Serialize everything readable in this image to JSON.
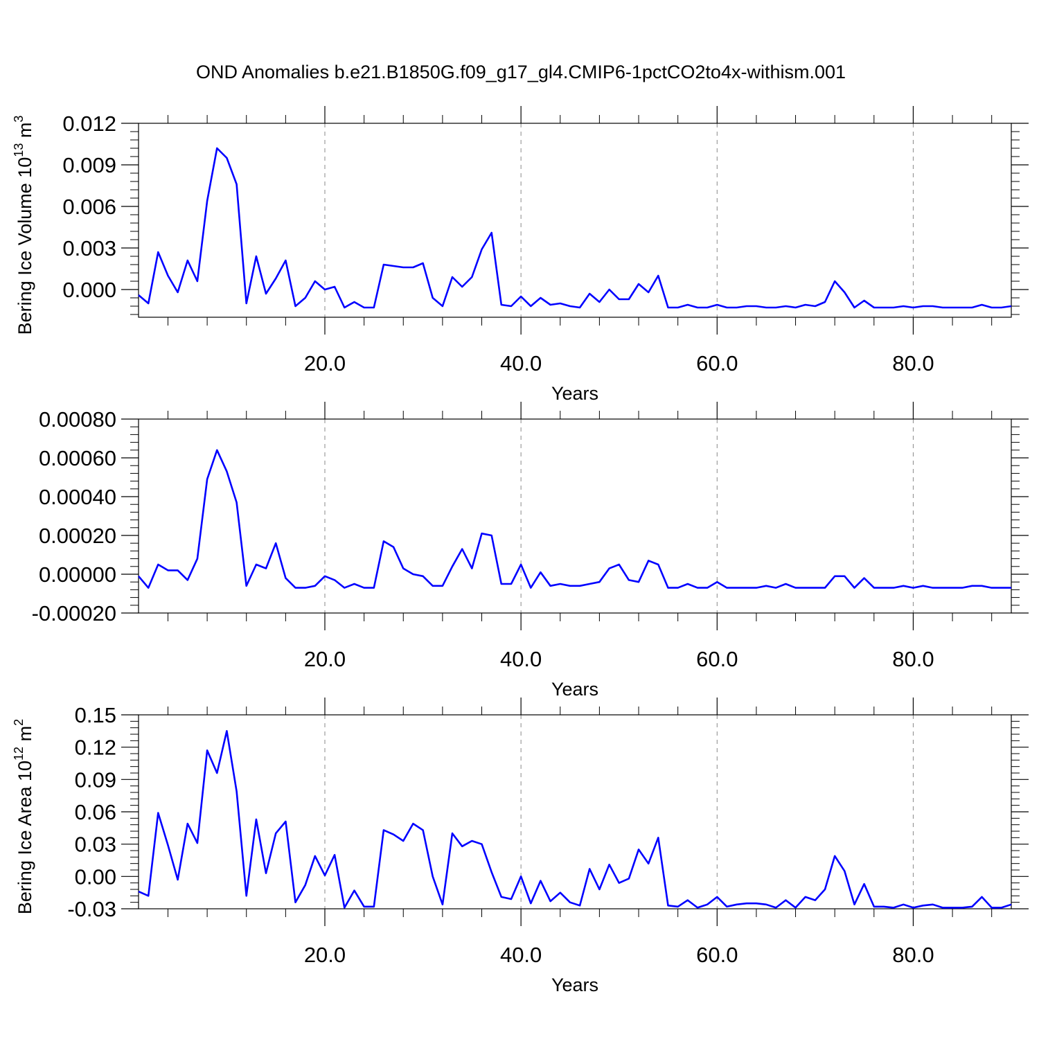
{
  "title": "OND Anomalies b.e21.B1850G.f09_g17_gl4.CMIP6-1pctCO2to4x-withism.001",
  "chart_data": [
    {
      "type": "line",
      "xlabel": "Years",
      "ylabel": "Bering Ice Volume 10",
      "ylabel_exp": "13",
      "ylabel_unit": " m",
      "ylabel_unit_exp": "3",
      "xlim": [
        1,
        90
      ],
      "ylim": [
        -0.002,
        0.012
      ],
      "x_ticks": [
        20,
        40,
        60,
        80
      ],
      "x_tick_labels": [
        "20.0",
        "40.0",
        "60.0",
        "80.0"
      ],
      "y_ticks": [
        0.0,
        0.003,
        0.006,
        0.009,
        0.012
      ],
      "y_tick_labels": [
        "0.000",
        "0.003",
        "0.006",
        "0.009",
        "0.012"
      ],
      "grid": "dashed vertical at x ticks",
      "color": "#0000ff",
      "x_start": 1,
      "values": [
        -0.0004,
        -0.001,
        0.0027,
        0.001,
        -0.0002,
        0.0021,
        0.0006,
        0.0064,
        0.0102,
        0.0095,
        0.0076,
        -0.001,
        0.0024,
        -0.0003,
        0.0008,
        0.0021,
        -0.0012,
        -0.0006,
        0.0006,
        0.0,
        0.0002,
        -0.0013,
        -0.0009,
        -0.0013,
        -0.0013,
        0.0018,
        0.0017,
        0.0016,
        0.0016,
        0.0019,
        -0.0006,
        -0.0012,
        0.0009,
        0.0002,
        0.0009,
        0.0029,
        0.0041,
        -0.0011,
        -0.0012,
        -0.0005,
        -0.0012,
        -0.0006,
        -0.0011,
        -0.001,
        -0.0012,
        -0.0013,
        -0.0003,
        -0.0009,
        0.0,
        -0.0007,
        -0.0007,
        0.0004,
        -0.0002,
        0.001,
        -0.0013,
        -0.0013,
        -0.0011,
        -0.0013,
        -0.0013,
        -0.0011,
        -0.0013,
        -0.0013,
        -0.0012,
        -0.0012,
        -0.0013,
        -0.0013,
        -0.0012,
        -0.0013,
        -0.0011,
        -0.0012,
        -0.0009,
        0.0006,
        -0.0002,
        -0.0013,
        -0.0008,
        -0.0013,
        -0.0013,
        -0.0013,
        -0.0012,
        -0.0013,
        -0.0012,
        -0.0012,
        -0.0013,
        -0.0013,
        -0.0013,
        -0.0013,
        -0.0011,
        -0.0013,
        -0.0013,
        -0.0012
      ]
    },
    {
      "type": "line",
      "xlabel": "Years",
      "ylabel": "",
      "xlim": [
        1,
        90
      ],
      "ylim": [
        -0.0002,
        0.0008
      ],
      "x_ticks": [
        20,
        40,
        60,
        80
      ],
      "x_tick_labels": [
        "20.0",
        "40.0",
        "60.0",
        "80.0"
      ],
      "y_ticks": [
        -0.0002,
        0.0,
        0.0002,
        0.0004,
        0.0006,
        0.0008
      ],
      "y_tick_labels": [
        "-0.00020",
        "0.00000",
        "0.00020",
        "0.00040",
        "0.00060",
        "0.00080"
      ],
      "grid": "dashed vertical at x ticks",
      "color": "#0000ff",
      "x_start": 1,
      "values": [
        -1e-05,
        -7e-05,
        5e-05,
        2e-05,
        2e-05,
        -3e-05,
        8e-05,
        0.00049,
        0.00064,
        0.00053,
        0.00037,
        -6e-05,
        5e-05,
        3e-05,
        0.00016,
        -2e-05,
        -7e-05,
        -7e-05,
        -6e-05,
        -1e-05,
        -3e-05,
        -7e-05,
        -5e-05,
        -7e-05,
        -7e-05,
        0.00017,
        0.00014,
        3e-05,
        0.0,
        -1e-05,
        -6e-05,
        -6e-05,
        4e-05,
        0.00013,
        3e-05,
        0.00021,
        0.0002,
        -5e-05,
        -5e-05,
        5e-05,
        -7e-05,
        1e-05,
        -6e-05,
        -5e-05,
        -6e-05,
        -6e-05,
        -5e-05,
        -4e-05,
        3e-05,
        5e-05,
        -3e-05,
        -4e-05,
        7e-05,
        5e-05,
        -7e-05,
        -7e-05,
        -5e-05,
        -7e-05,
        -7e-05,
        -4e-05,
        -7e-05,
        -7e-05,
        -7e-05,
        -7e-05,
        -6e-05,
        -7e-05,
        -5e-05,
        -7e-05,
        -7e-05,
        -7e-05,
        -7e-05,
        -1e-05,
        -1e-05,
        -7e-05,
        -2e-05,
        -7e-05,
        -7e-05,
        -7e-05,
        -6e-05,
        -7e-05,
        -6e-05,
        -7e-05,
        -7e-05,
        -7e-05,
        -7e-05,
        -6e-05,
        -6e-05,
        -7e-05,
        -7e-05,
        -7e-05
      ]
    },
    {
      "type": "line",
      "xlabel": "Years",
      "ylabel": "Bering Ice Area 10",
      "ylabel_exp": "12",
      "ylabel_unit": " m",
      "ylabel_unit_exp": "2",
      "xlim": [
        1,
        90
      ],
      "ylim": [
        -0.03,
        0.15
      ],
      "x_ticks": [
        20,
        40,
        60,
        80
      ],
      "x_tick_labels": [
        "20.0",
        "40.0",
        "60.0",
        "80.0"
      ],
      "y_ticks": [
        -0.03,
        0.0,
        0.03,
        0.06,
        0.09,
        0.12,
        0.15
      ],
      "y_tick_labels": [
        "-0.03",
        "0.00",
        "0.03",
        "0.06",
        "0.09",
        "0.12",
        "0.15"
      ],
      "grid": "dashed vertical at x ticks",
      "color": "#0000ff",
      "x_start": 1,
      "values": [
        -0.014,
        -0.018,
        0.059,
        0.029,
        -0.003,
        0.049,
        0.031,
        0.117,
        0.096,
        0.135,
        0.079,
        -0.018,
        0.053,
        0.003,
        0.04,
        0.051,
        -0.024,
        -0.008,
        0.019,
        0.001,
        0.02,
        -0.029,
        -0.013,
        -0.028,
        -0.028,
        0.043,
        0.039,
        0.033,
        0.049,
        0.043,
        0.0,
        -0.026,
        0.04,
        0.028,
        0.033,
        0.03,
        0.004,
        -0.019,
        -0.021,
        0.0,
        -0.025,
        -0.004,
        -0.023,
        -0.015,
        -0.024,
        -0.027,
        0.007,
        -0.012,
        0.011,
        -0.006,
        -0.002,
        0.025,
        0.012,
        0.036,
        -0.027,
        -0.028,
        -0.022,
        -0.029,
        -0.026,
        -0.019,
        -0.028,
        -0.026,
        -0.025,
        -0.025,
        -0.026,
        -0.029,
        -0.022,
        -0.029,
        -0.019,
        -0.022,
        -0.012,
        0.019,
        0.005,
        -0.026,
        -0.007,
        -0.028,
        -0.028,
        -0.029,
        -0.026,
        -0.029,
        -0.027,
        -0.026,
        -0.029,
        -0.029,
        -0.029,
        -0.028,
        -0.019,
        -0.029,
        -0.029,
        -0.026
      ]
    }
  ]
}
